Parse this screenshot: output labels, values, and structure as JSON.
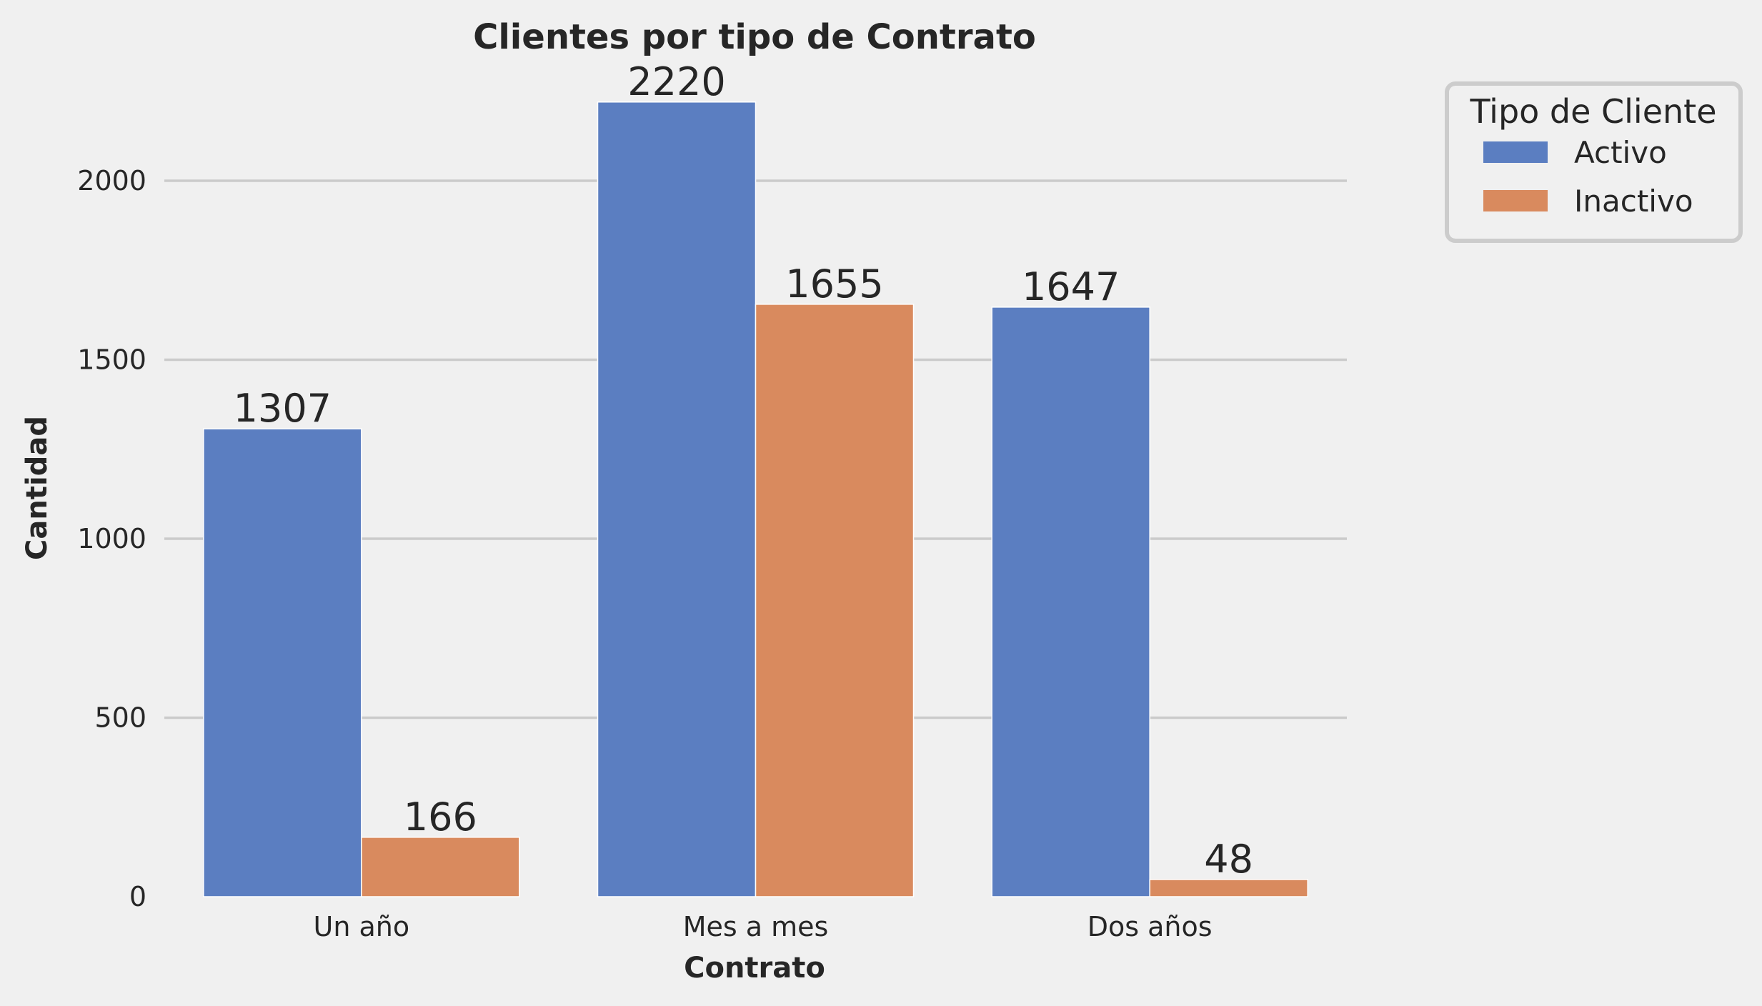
{
  "chart_data": {
    "type": "bar",
    "title": "Clientes por tipo de Contrato",
    "xlabel": "Contrato",
    "ylabel": "Cantidad",
    "categories": [
      "Un año",
      "Mes a mes",
      "Dos años"
    ],
    "series": [
      {
        "name": "Activo",
        "values": [
          1307,
          2220,
          1647
        ],
        "color": "#5b7ec1"
      },
      {
        "name": "Inactivo",
        "values": [
          166,
          1655,
          48
        ],
        "color": "#d98a5e"
      }
    ],
    "ylim": [
      0,
      2300
    ],
    "yticks": [
      0,
      500,
      1000,
      1500,
      2000
    ],
    "grid": "horizontal",
    "legend": {
      "title": "Tipo de Cliente",
      "placement": "outside top-right"
    },
    "data_labels": true
  }
}
